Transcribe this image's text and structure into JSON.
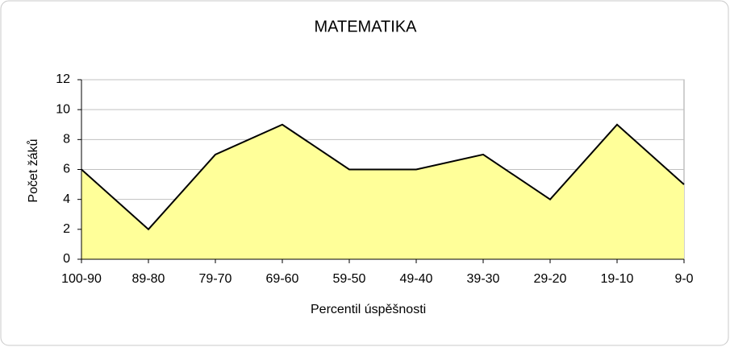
{
  "chart_data": {
    "type": "area",
    "title": "MATEMATIKA",
    "x_label": "Percentil úspěšnosti",
    "y_label": "Počet žáků",
    "categories": [
      "100-90",
      "89-80",
      "79-70",
      "69-60",
      "59-50",
      "49-40",
      "39-30",
      "29-20",
      "19-10",
      "9-0"
    ],
    "values": [
      6,
      2,
      7,
      9,
      6,
      6,
      7,
      4,
      9,
      5
    ],
    "color": "#ffff99",
    "line_color": "#000000",
    "ylim": [
      0,
      12
    ],
    "yticks": [
      0,
      2,
      4,
      6,
      8,
      10,
      12
    ],
    "grid": true
  }
}
